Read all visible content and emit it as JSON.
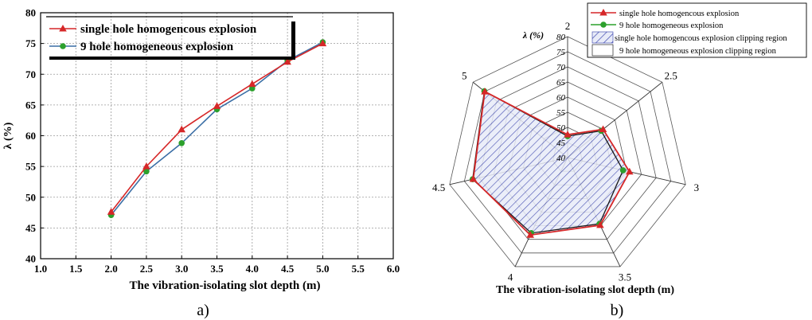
{
  "panels": {
    "a_caption": "a)",
    "b_caption": "b)"
  },
  "chart_data": [
    {
      "type": "line",
      "panel": "a)",
      "xlabel": "The vibration-isolating slot depth  (m)",
      "ylabel": "λ (%)",
      "xlim": [
        1.0,
        6.0
      ],
      "ylim": [
        40,
        80
      ],
      "xticks": [
        "1.0",
        "1.5",
        "2.0",
        "2.5",
        "3.0",
        "3.5",
        "4.0",
        "4.5",
        "5.0",
        "5.5",
        "6.0"
      ],
      "yticks": [
        "40",
        "45",
        "50",
        "55",
        "60",
        "65",
        "70",
        "75",
        "80"
      ],
      "grid": true,
      "legend_position": "top-left",
      "x": [
        2.0,
        2.5,
        3.0,
        3.5,
        4.0,
        4.5,
        5.0
      ],
      "series": [
        {
          "name": "single hole homogencous explosion",
          "color": "#d62728",
          "marker": "triangle",
          "values": [
            47.6,
            55.0,
            61.0,
            64.8,
            68.4,
            72.0,
            75.0
          ]
        },
        {
          "name": "9  hole homogeneous explosion",
          "color": "#2ca02c",
          "line_color": "#3a6ea5",
          "marker": "circle",
          "values": [
            47.1,
            54.2,
            58.8,
            64.3,
            67.7,
            72.2,
            75.2
          ]
        }
      ]
    },
    {
      "type": "radar",
      "panel": "b)",
      "axis_title": "λ (%)",
      "xlabel": "The vibration-isolating slot depth (m)",
      "categories": [
        "2",
        "2.5",
        "3",
        "3.5",
        "4",
        "4.5",
        "5"
      ],
      "rlim": [
        40,
        80
      ],
      "rticks": [
        "40",
        "45",
        "50",
        "55",
        "60",
        "65",
        "70",
        "75",
        "80"
      ],
      "legend_position": "top-right",
      "series": [
        {
          "name": "single hole homogencous explosion",
          "color": "#d62728",
          "marker": "triangle",
          "values": [
            47.6,
            55.0,
            61.0,
            64.8,
            68.4,
            72.0,
            75.0
          ]
        },
        {
          "name": "9  hole homogeneous explosion",
          "color": "#2ca02c",
          "line_color": "#1a1a1a",
          "marker": "circle",
          "values": [
            47.1,
            54.2,
            58.8,
            64.3,
            67.7,
            72.2,
            75.2
          ]
        }
      ],
      "regions": [
        {
          "name": "single hole homogencous explosion clipping region",
          "fill": "hatched-blue"
        },
        {
          "name": "9  hole homogeneous explosion clipping region",
          "fill": "none"
        }
      ]
    }
  ]
}
